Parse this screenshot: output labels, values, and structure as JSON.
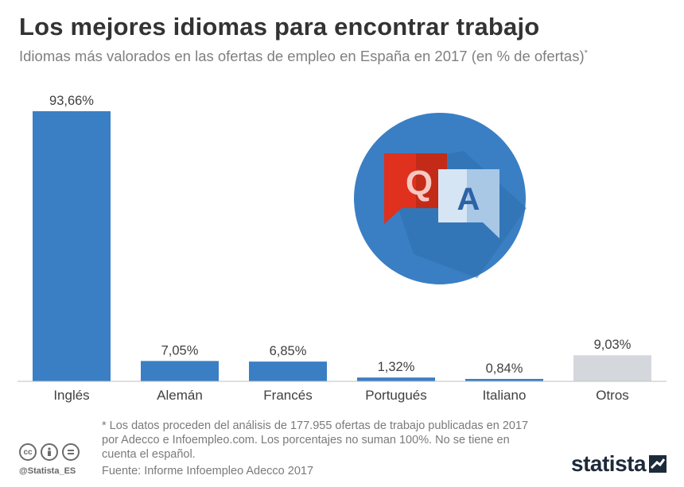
{
  "header": {
    "title": "Los mejores idiomas para encontrar trabajo",
    "subtitle": "Idiomas más valorados en las ofertas de empleo en España en 2017 (en % de ofertas)",
    "subtitle_mark": "*"
  },
  "chart_data": {
    "type": "bar",
    "categories": [
      "Inglés",
      "Alemán",
      "Francés",
      "Portugués",
      "Italiano",
      "Otros"
    ],
    "values": [
      93.66,
      7.05,
      6.85,
      1.32,
      0.84,
      9.03
    ],
    "value_labels": [
      "93,66%",
      "7,05%",
      "6,85%",
      "1,32%",
      "0,84%",
      "9,03%"
    ],
    "bar_colors": [
      "#3a7fc4",
      "#3a7fc4",
      "#3a7fc4",
      "#3a7fc4",
      "#3a7fc4",
      "#d4d8dc"
    ],
    "ylim": [
      0,
      100
    ],
    "grid": false,
    "legend": "none"
  },
  "illustration": {
    "icon": "question-answer-icon",
    "q_letter": "Q",
    "a_letter": "A",
    "circle_color": "#3a7fc4",
    "q_color": "#e0301e",
    "a_color": "#a9c8e6"
  },
  "footer": {
    "footnote": "* Los datos proceden del análisis de 177.955 ofertas de trabajo publicadas en 2017 por Adecco e Infoempleo.com. Los porcentajes no suman 100%. No se tiene en cuenta el español.",
    "source": "Fuente: Informe Infoempleo Adecco 2017",
    "handle": "@Statista_ES",
    "brand": "statista",
    "license_icons": [
      "cc-icon",
      "attribution-icon",
      "no-derivatives-icon"
    ]
  }
}
